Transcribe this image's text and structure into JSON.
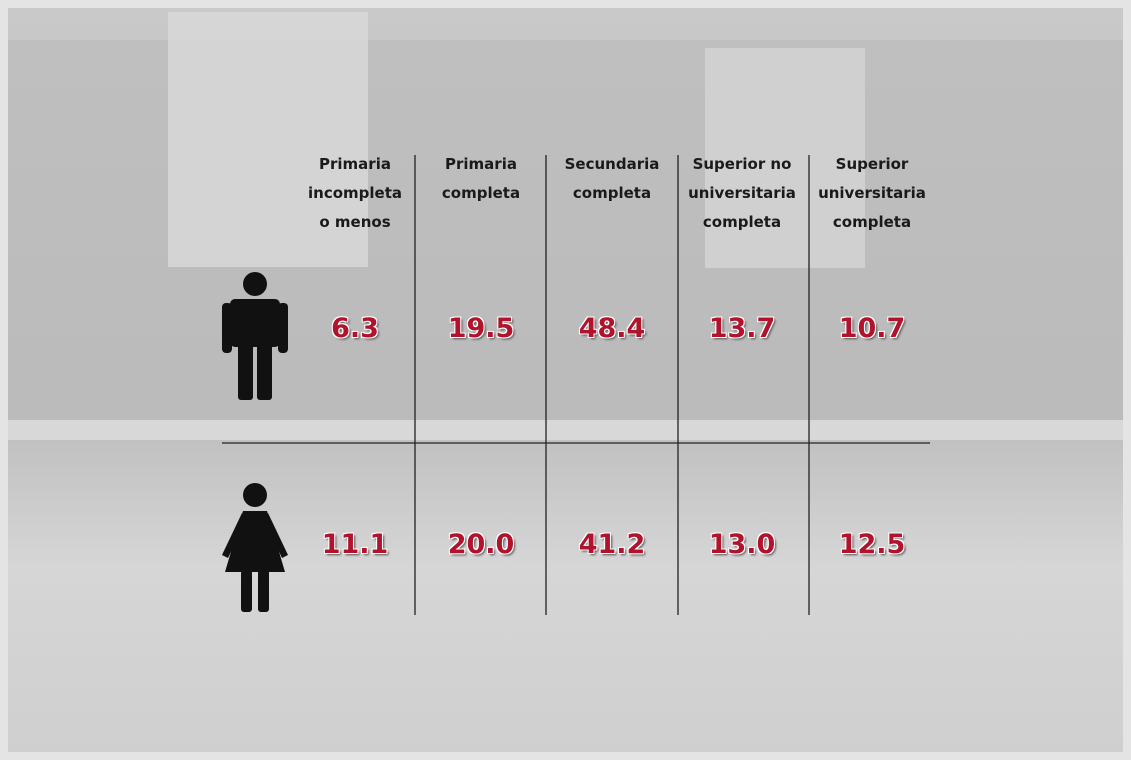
{
  "table": {
    "columns": [
      "Primaria\nincompleta\no menos",
      "Primaria\ncompleta",
      "Secundaria\ncompleta",
      "Superior no\nuniversitaria\ncompleta",
      "Superior\nuniversitaria\ncompleta"
    ],
    "rows": [
      [
        "6.3",
        "19.5",
        "48.4",
        "13.7",
        "10.7"
      ],
      [
        "11.1",
        "20.0",
        "41.2",
        "13.0",
        "12.5"
      ]
    ]
  }
}
